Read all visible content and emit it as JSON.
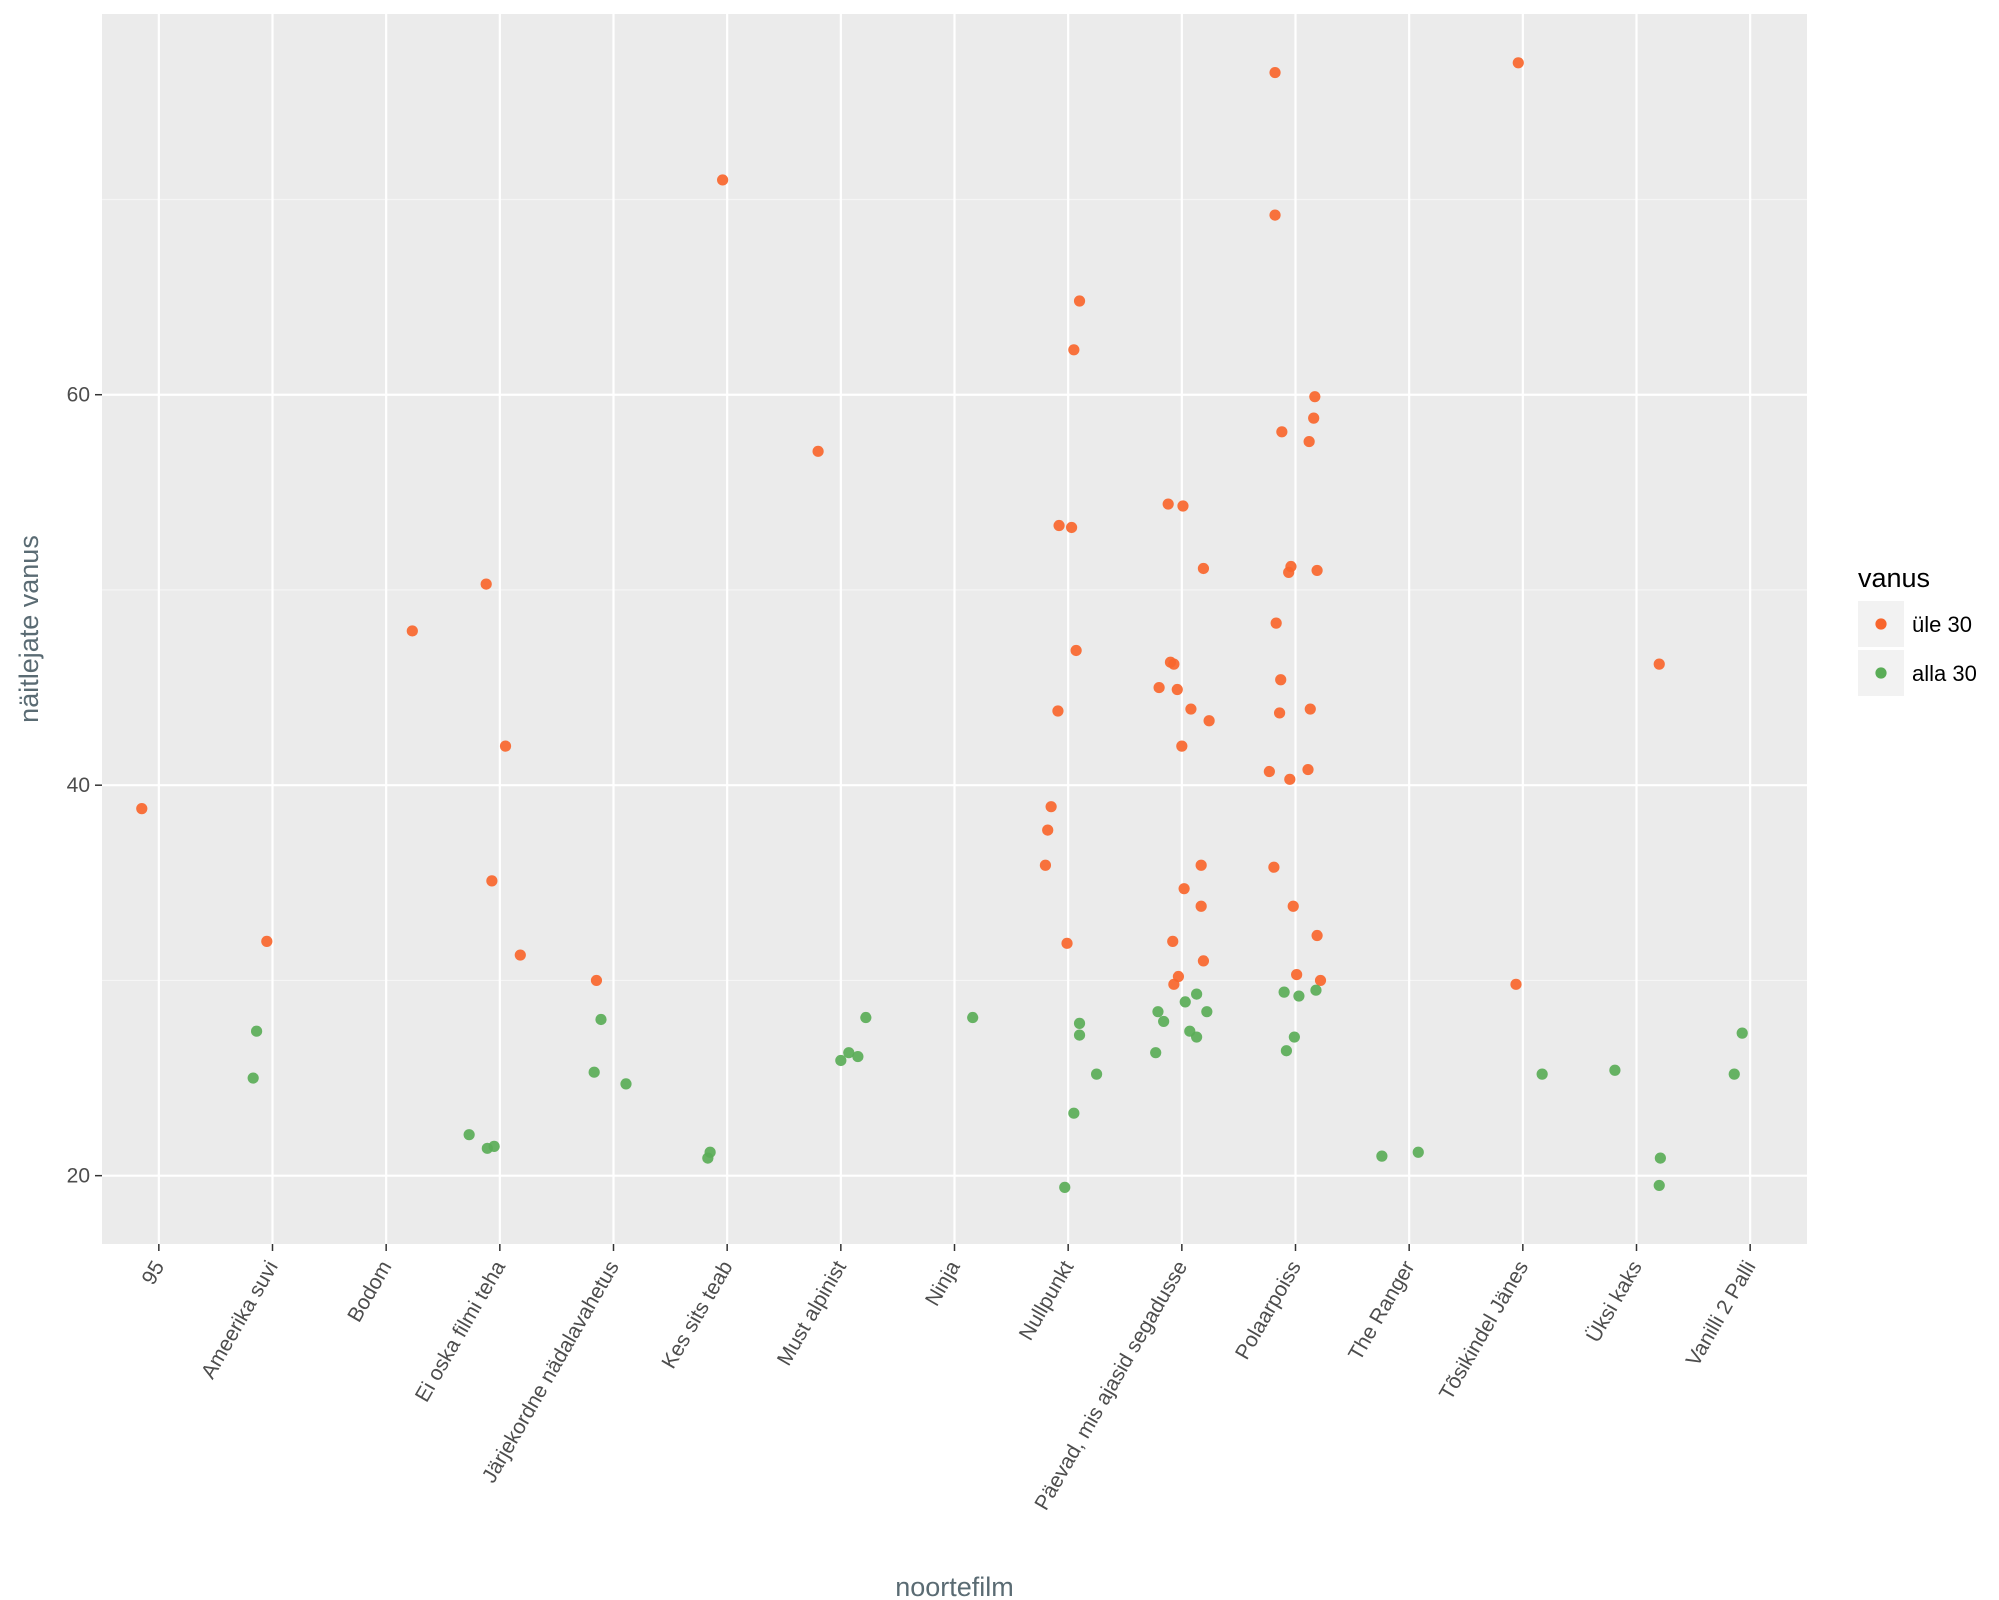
{
  "chart_data": {
    "type": "scatter",
    "xlabel": "noortefilm",
    "ylabel": "näitlejate vanus",
    "categories": [
      "95",
      "Ameerika suvi",
      "Bodom",
      "Ei oska filmi teha",
      "Järjekordne nädalavahetus",
      "Kes sits teab",
      "Must alpinist",
      "Ninja",
      "Nullpunkt",
      "Päevad, mis ajasid segadusse",
      "Polaarpoiss",
      "The Ranger",
      "Tõsikindel Jänes",
      "Üksi kaks",
      "Vanilli 2 Palli"
    ],
    "ylim": [
      16.5,
      79.5
    ],
    "yticks": [
      20,
      40,
      60
    ],
    "grid": true,
    "legend": {
      "title": "vanus",
      "position": "right"
    },
    "series": [
      {
        "name": "üle 30",
        "color": "#f8662d",
        "points": [
          [
            "95",
            -0.15,
            38.8
          ],
          [
            "Ameerika suvi",
            -0.05,
            32.0
          ],
          [
            "Bodom",
            0.23,
            47.9
          ],
          [
            "Ei oska filmi teha",
            -0.12,
            50.3
          ],
          [
            "Ei oska filmi teha",
            0.05,
            42.0
          ],
          [
            "Ei oska filmi teha",
            -0.07,
            35.1
          ],
          [
            "Ei oska filmi teha",
            0.18,
            31.3
          ],
          [
            "Järjekordne nädalavahetus",
            -0.15,
            30.0
          ],
          [
            "Kes sits teab",
            -0.04,
            71.0
          ],
          [
            "Must alpinist",
            -0.2,
            57.1
          ],
          [
            "Nullpunkt",
            0.1,
            64.8
          ],
          [
            "Nullpunkt",
            0.05,
            62.3
          ],
          [
            "Nullpunkt",
            -0.08,
            53.3
          ],
          [
            "Nullpunkt",
            0.03,
            53.2
          ],
          [
            "Nullpunkt",
            0.07,
            46.9
          ],
          [
            "Nullpunkt",
            -0.09,
            43.8
          ],
          [
            "Nullpunkt",
            -0.15,
            38.9
          ],
          [
            "Nullpunkt",
            -0.18,
            37.7
          ],
          [
            "Nullpunkt",
            -0.2,
            35.9
          ],
          [
            "Nullpunkt",
            -0.01,
            31.9
          ],
          [
            "Päevad, mis ajasid segadusse",
            -0.12,
            54.4
          ],
          [
            "Päevad, mis ajasid segadusse",
            0.01,
            54.3
          ],
          [
            "Päevad, mis ajasid segadusse",
            0.19,
            51.1
          ],
          [
            "Päevad, mis ajasid segadusse",
            -0.1,
            46.3
          ],
          [
            "Päevad, mis ajasid segadusse",
            -0.07,
            46.2
          ],
          [
            "Päevad, mis ajasid segadusse",
            -0.2,
            45.0
          ],
          [
            "Päevad, mis ajasid segadusse",
            -0.04,
            44.9
          ],
          [
            "Päevad, mis ajasid segadusse",
            0.08,
            43.9
          ],
          [
            "Päevad, mis ajasid segadusse",
            0.24,
            43.3
          ],
          [
            "Päevad, mis ajasid segadusse",
            0.0,
            42.0
          ],
          [
            "Päevad, mis ajasid segadusse",
            0.17,
            35.9
          ],
          [
            "Päevad, mis ajasid segadusse",
            0.02,
            34.7
          ],
          [
            "Päevad, mis ajasid segadusse",
            0.17,
            33.8
          ],
          [
            "Päevad, mis ajasid segadusse",
            -0.08,
            32.0
          ],
          [
            "Päevad, mis ajasid segadusse",
            0.19,
            31.0
          ],
          [
            "Päevad, mis ajasid segadusse",
            -0.03,
            30.2
          ],
          [
            "Päevad, mis ajasid segadusse",
            -0.07,
            29.8
          ],
          [
            "Polaarpoiss",
            -0.18,
            76.5
          ],
          [
            "Polaarpoiss",
            -0.18,
            69.2
          ],
          [
            "Polaarpoiss",
            0.17,
            59.9
          ],
          [
            "Polaarpoiss",
            0.16,
            58.8
          ],
          [
            "Polaarpoiss",
            -0.12,
            58.1
          ],
          [
            "Polaarpoiss",
            0.12,
            57.6
          ],
          [
            "Polaarpoiss",
            -0.04,
            51.2
          ],
          [
            "Polaarpoiss",
            -0.06,
            50.9
          ],
          [
            "Polaarpoiss",
            0.19,
            51.0
          ],
          [
            "Polaarpoiss",
            -0.17,
            48.3
          ],
          [
            "Polaarpoiss",
            -0.13,
            45.4
          ],
          [
            "Polaarpoiss",
            -0.14,
            43.7
          ],
          [
            "Polaarpoiss",
            0.13,
            43.9
          ],
          [
            "Polaarpoiss",
            -0.23,
            40.7
          ],
          [
            "Polaarpoiss",
            0.11,
            40.8
          ],
          [
            "Polaarpoiss",
            -0.05,
            40.3
          ],
          [
            "Polaarpoiss",
            -0.19,
            35.8
          ],
          [
            "Polaarpoiss",
            -0.02,
            33.8
          ],
          [
            "Polaarpoiss",
            0.19,
            32.3
          ],
          [
            "Polaarpoiss",
            0.01,
            30.3
          ],
          [
            "Polaarpoiss",
            0.22,
            30.0
          ],
          [
            "Tõsikindel Jänes",
            -0.04,
            77.0
          ],
          [
            "Tõsikindel Jänes",
            -0.06,
            29.8
          ],
          [
            "Üksi kaks",
            0.2,
            46.2
          ]
        ]
      },
      {
        "name": "alla 30",
        "color": "#5aad57",
        "points": [
          [
            "Ameerika suvi",
            -0.14,
            27.4
          ],
          [
            "Ameerika suvi",
            -0.17,
            25.0
          ],
          [
            "Ei oska filmi teha",
            -0.27,
            22.1
          ],
          [
            "Ei oska filmi teha",
            -0.11,
            21.4
          ],
          [
            "Ei oska filmi teha",
            -0.05,
            21.5
          ],
          [
            "Järjekordne nädalavahetus",
            -0.17,
            25.3
          ],
          [
            "Järjekordne nädalavahetus",
            -0.11,
            28.0
          ],
          [
            "Järjekordne nädalavahetus",
            0.11,
            24.7
          ],
          [
            "Kes sits teab",
            -0.15,
            21.2
          ],
          [
            "Kes sits teab",
            -0.17,
            20.9
          ],
          [
            "Must alpinist",
            0.0,
            25.9
          ],
          [
            "Must alpinist",
            0.07,
            26.3
          ],
          [
            "Must alpinist",
            0.15,
            26.1
          ],
          [
            "Must alpinist",
            0.22,
            28.1
          ],
          [
            "Ninja",
            0.16,
            28.1
          ],
          [
            "Nullpunkt",
            0.1,
            27.8
          ],
          [
            "Nullpunkt",
            0.1,
            27.2
          ],
          [
            "Nullpunkt",
            0.25,
            25.2
          ],
          [
            "Nullpunkt",
            0.05,
            23.2
          ],
          [
            "Nullpunkt",
            -0.03,
            19.4
          ],
          [
            "Päevad, mis ajasid segadusse",
            -0.21,
            28.4
          ],
          [
            "Päevad, mis ajasid segadusse",
            -0.16,
            27.9
          ],
          [
            "Päevad, mis ajasid segadusse",
            0.13,
            29.3
          ],
          [
            "Päevad, mis ajasid segadusse",
            0.03,
            28.9
          ],
          [
            "Päevad, mis ajasid segadusse",
            0.22,
            28.4
          ],
          [
            "Päevad, mis ajasid segadusse",
            0.07,
            27.4
          ],
          [
            "Päevad, mis ajasid segadusse",
            0.13,
            27.1
          ],
          [
            "Päevad, mis ajasid segadusse",
            -0.23,
            26.3
          ],
          [
            "Polaarpoiss",
            -0.1,
            29.4
          ],
          [
            "Polaarpoiss",
            0.03,
            29.2
          ],
          [
            "Polaarpoiss",
            0.18,
            29.5
          ],
          [
            "Polaarpoiss",
            -0.01,
            27.1
          ],
          [
            "Polaarpoiss",
            -0.08,
            26.4
          ],
          [
            "The Ranger",
            -0.24,
            21.0
          ],
          [
            "The Ranger",
            0.08,
            21.2
          ],
          [
            "Tõsikindel Jänes",
            0.17,
            25.2
          ],
          [
            "Üksi kaks",
            -0.19,
            25.4
          ],
          [
            "Üksi kaks",
            0.21,
            20.9
          ],
          [
            "Üksi kaks",
            0.2,
            19.5
          ],
          [
            "Vanilli 2 Palli",
            -0.14,
            25.2
          ],
          [
            "Vanilli 2 Palli",
            -0.07,
            27.3
          ]
        ]
      }
    ]
  }
}
